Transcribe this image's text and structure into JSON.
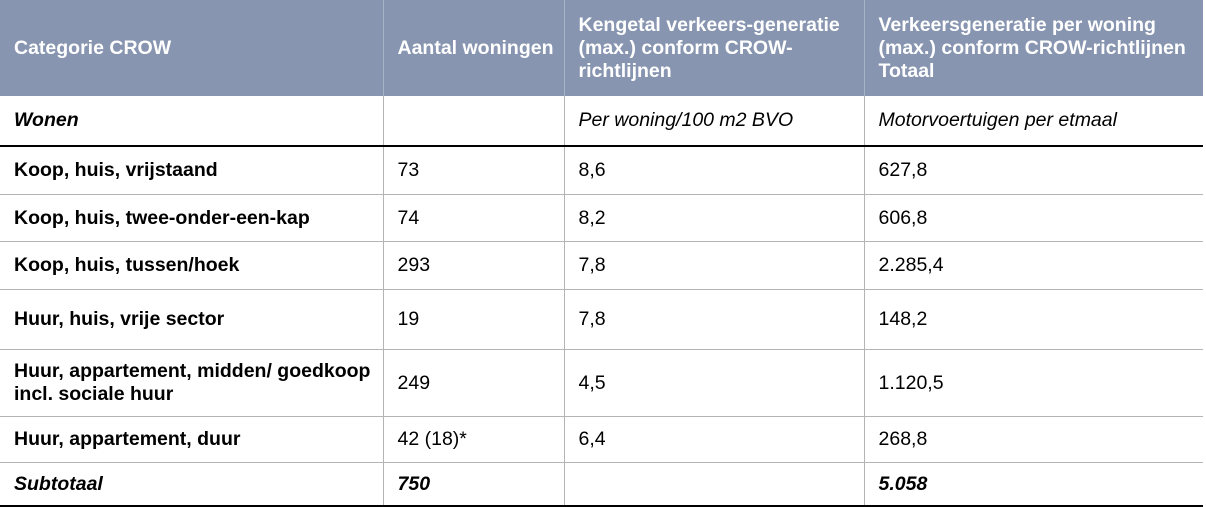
{
  "table": {
    "headers": [
      "Categorie CROW",
      "Aantal woningen",
      "Kengetal verkeers-generatie (max.) conform CROW-richtlijnen",
      "Verkeersgeneratie per woning (max.) conform CROW-richtlijnen Totaal"
    ],
    "section": {
      "category": "Wonen",
      "count": "",
      "unit_kengetal": "Per woning/100 m2 BVO",
      "unit_total": "Motorvoertuigen per etmaal"
    },
    "rows": [
      [
        "Koop, huis, vrijstaand",
        "73",
        "8,6",
        "627,8"
      ],
      [
        "Koop, huis, twee-onder-een-kap",
        "74",
        "8,2",
        "606,8"
      ],
      [
        "Koop, huis, tussen/hoek",
        "293",
        "7,8",
        "2.285,4"
      ],
      [
        "Huur, huis, vrije sector",
        "19",
        "7,8",
        "148,2"
      ],
      [
        "Huur, appartement, midden/ goedkoop incl. sociale huur",
        "249",
        "4,5",
        "1.120,5"
      ],
      [
        "Huur, appartement, duur",
        "42 (18)*",
        "6,4",
        "268,8"
      ]
    ],
    "subtotal": [
      "Subtotaal",
      "750",
      "",
      "5.058"
    ]
  }
}
